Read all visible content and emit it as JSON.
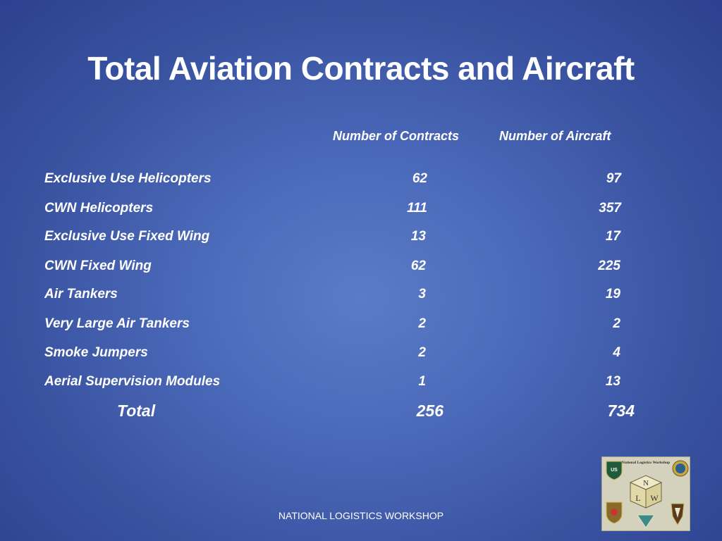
{
  "slide": {
    "title": "Total Aviation Contracts and Aircraft",
    "columns": {
      "contracts": "Number of Contracts",
      "aircraft": "Number of Aircraft"
    },
    "rows": [
      {
        "label": "Exclusive Use Helicopters",
        "contracts": "62",
        "aircraft": "97"
      },
      {
        "label": "CWN Helicopters",
        "contracts": "111",
        "aircraft": "357"
      },
      {
        "label": "Exclusive Use Fixed Wing",
        "contracts": "13",
        "aircraft": "17"
      },
      {
        "label": "CWN Fixed Wing",
        "contracts": "62",
        "aircraft": "225"
      },
      {
        "label": "Air Tankers",
        "contracts": "3",
        "aircraft": "19"
      },
      {
        "label": "Very Large Air Tankers",
        "contracts": "2",
        "aircraft": "2"
      },
      {
        "label": "Smoke Jumpers",
        "contracts": "2",
        "aircraft": "4"
      },
      {
        "label": "Aerial Supervision Modules",
        "contracts": "1",
        "aircraft": "13"
      }
    ],
    "total": {
      "label": "Total",
      "contracts": "256",
      "aircraft": "734"
    },
    "footer": "NATIONAL LOGISTICS WORKSHOP",
    "logo": {
      "heading": "National Logistics Workshop",
      "letters": [
        "N",
        "L",
        "W"
      ],
      "badge": "US"
    }
  }
}
